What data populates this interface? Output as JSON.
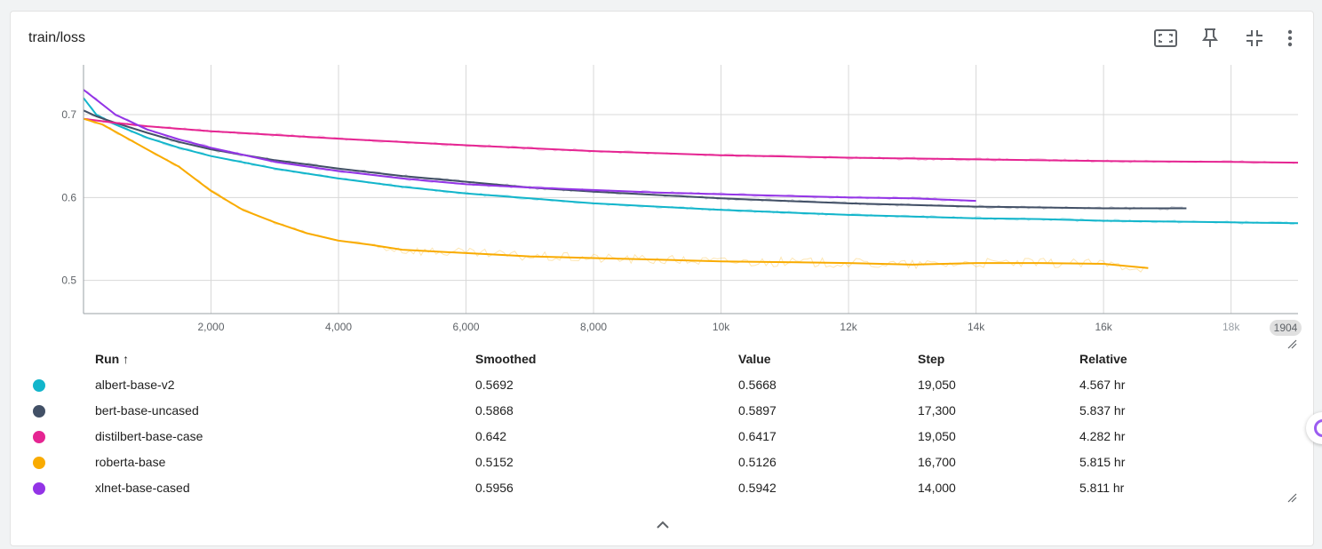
{
  "card": {
    "title": "train/loss"
  },
  "toolbar": {
    "icons": [
      "fullscreen-icon",
      "pin-icon",
      "fit-domain-icon",
      "more-vert-icon"
    ]
  },
  "table": {
    "headers": {
      "run": "Run ↑",
      "smoothed": "Smoothed",
      "value": "Value",
      "step": "Step",
      "relative": "Relative"
    },
    "rows": [
      {
        "color": "#12b5cb",
        "run": "albert-base-v2",
        "smoothed": "0.5692",
        "value": "0.5668",
        "step": "19,050",
        "relative": "4.567 hr"
      },
      {
        "color": "#425066",
        "run": "bert-base-uncased",
        "smoothed": "0.5868",
        "value": "0.5897",
        "step": "17,300",
        "relative": "5.837 hr"
      },
      {
        "color": "#e52592",
        "run": "distilbert-base-case",
        "smoothed": "0.642",
        "value": "0.6417",
        "step": "19,050",
        "relative": "4.282 hr"
      },
      {
        "color": "#f9ab00",
        "run": "roberta-base",
        "smoothed": "0.5152",
        "value": "0.5126",
        "step": "16,700",
        "relative": "5.815 hr"
      },
      {
        "color": "#9334e6",
        "run": "xlnet-base-cased",
        "smoothed": "0.5956",
        "value": "0.5942",
        "step": "14,000",
        "relative": "5.811 hr"
      }
    ]
  },
  "chart_data": {
    "type": "line",
    "title": "train/loss",
    "xlabel": "",
    "ylabel": "",
    "xlim": [
      0,
      19050
    ],
    "ylim": [
      0.46,
      0.76
    ],
    "grid": true,
    "x_ticks": [
      {
        "value": 2000,
        "label": "2,000"
      },
      {
        "value": 4000,
        "label": "4,000"
      },
      {
        "value": 6000,
        "label": "6,000"
      },
      {
        "value": 8000,
        "label": "8,000"
      },
      {
        "value": 10000,
        "label": "10k"
      },
      {
        "value": 12000,
        "label": "12k"
      },
      {
        "value": 14000,
        "label": "14k"
      },
      {
        "value": 16000,
        "label": "16k"
      },
      {
        "value": 18000,
        "label": "18k"
      }
    ],
    "x_end_label": "1904",
    "y_ticks": [
      {
        "value": 0.5,
        "label": "0.5"
      },
      {
        "value": 0.6,
        "label": "0.6"
      },
      {
        "value": 0.7,
        "label": "0.7"
      }
    ],
    "series": [
      {
        "name": "albert-base-v2",
        "color": "#12b5cb",
        "x": [
          0,
          200,
          500,
          1000,
          1500,
          2000,
          3000,
          4000,
          5000,
          6000,
          7000,
          8000,
          9000,
          10000,
          11000,
          12000,
          13000,
          14000,
          15000,
          16000,
          17000,
          18000,
          19050
        ],
        "y": [
          0.72,
          0.7,
          0.688,
          0.672,
          0.66,
          0.65,
          0.635,
          0.623,
          0.613,
          0.605,
          0.599,
          0.593,
          0.589,
          0.585,
          0.582,
          0.579,
          0.577,
          0.575,
          0.574,
          0.572,
          0.571,
          0.57,
          0.569
        ]
      },
      {
        "name": "bert-base-uncased",
        "color": "#425066",
        "x": [
          0,
          200,
          500,
          1000,
          1500,
          2000,
          3000,
          4000,
          5000,
          6000,
          7000,
          8000,
          9000,
          10000,
          11000,
          12000,
          13000,
          14000,
          15000,
          16000,
          17300
        ],
        "y": [
          0.705,
          0.698,
          0.69,
          0.678,
          0.667,
          0.658,
          0.645,
          0.635,
          0.626,
          0.619,
          0.612,
          0.607,
          0.603,
          0.599,
          0.596,
          0.593,
          0.591,
          0.589,
          0.588,
          0.587,
          0.587
        ]
      },
      {
        "name": "distilbert-base-case",
        "color": "#e52592",
        "x": [
          0,
          500,
          1000,
          2000,
          4000,
          6000,
          8000,
          10000,
          12000,
          14000,
          16000,
          18000,
          19050
        ],
        "y": [
          0.695,
          0.69,
          0.686,
          0.68,
          0.671,
          0.663,
          0.656,
          0.651,
          0.648,
          0.646,
          0.644,
          0.643,
          0.642
        ]
      },
      {
        "name": "roberta-base",
        "color": "#f9ab00",
        "x": [
          0,
          300,
          600,
          1000,
          1500,
          2000,
          2500,
          3000,
          3500,
          4000,
          4500,
          5000,
          6000,
          7000,
          8000,
          9000,
          10000,
          11000,
          12000,
          13000,
          14000,
          15000,
          16000,
          16700
        ],
        "y": [
          0.695,
          0.688,
          0.675,
          0.658,
          0.637,
          0.608,
          0.585,
          0.57,
          0.557,
          0.548,
          0.543,
          0.537,
          0.533,
          0.529,
          0.527,
          0.525,
          0.523,
          0.522,
          0.521,
          0.519,
          0.521,
          0.521,
          0.52,
          0.515
        ]
      },
      {
        "name": "xlnet-base-cased",
        "color": "#9334e6",
        "x": [
          0,
          200,
          500,
          1000,
          1500,
          2000,
          3000,
          4000,
          5000,
          6000,
          7000,
          8000,
          9000,
          10000,
          11000,
          12000,
          13000,
          14000
        ],
        "y": [
          0.73,
          0.718,
          0.7,
          0.682,
          0.67,
          0.66,
          0.643,
          0.632,
          0.623,
          0.616,
          0.612,
          0.609,
          0.606,
          0.604,
          0.602,
          0.6,
          0.599,
          0.596
        ]
      }
    ]
  }
}
